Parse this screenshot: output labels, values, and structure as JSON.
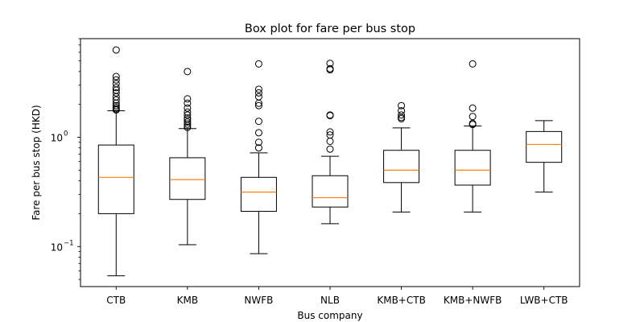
{
  "chart_data": {
    "type": "box",
    "title": "Box plot for fare per bus stop",
    "xlabel": "Bus company",
    "ylabel": "Fare per bus stop (HKD)",
    "yscale": "log",
    "ylim": [
      0.043,
      8.0
    ],
    "y_ticks": [
      {
        "value": 0.1,
        "label": "10",
        "exp": "−1"
      },
      {
        "value": 1.0,
        "label": "10",
        "exp": "0"
      }
    ],
    "categories": [
      "CTB",
      "KMB",
      "NWFB",
      "NLB",
      "KMB+CTB",
      "KMB+NWFB",
      "LWB+CTB"
    ],
    "boxes": [
      {
        "whisker_low": 0.054,
        "q1": 0.2,
        "median": 0.43,
        "q3": 0.85,
        "whisker_high": 1.75,
        "outliers": [
          6.3,
          3.6,
          3.35,
          3.1,
          2.85,
          2.7,
          2.55,
          2.35,
          2.2,
          2.05,
          1.95,
          1.88,
          1.82,
          1.78
        ]
      },
      {
        "whisker_low": 0.104,
        "q1": 0.27,
        "median": 0.41,
        "q3": 0.65,
        "whisker_high": 1.2,
        "outliers": [
          4.0,
          2.25,
          2.05,
          1.85,
          1.7,
          1.6,
          1.5,
          1.45,
          1.38,
          1.32,
          1.27,
          1.23
        ]
      },
      {
        "whisker_low": 0.086,
        "q1": 0.21,
        "median": 0.315,
        "q3": 0.43,
        "whisker_high": 0.72,
        "outliers": [
          4.7,
          2.75,
          2.55,
          2.35,
          2.05,
          1.95,
          1.4,
          1.1,
          0.9,
          0.8
        ]
      },
      {
        "whisker_low": 0.162,
        "q1": 0.23,
        "median": 0.28,
        "q3": 0.445,
        "whisker_high": 0.67,
        "outliers": [
          4.75,
          4.25,
          4.15,
          1.6,
          1.58,
          1.12,
          1.05,
          0.92,
          0.78
        ]
      },
      {
        "whisker_low": 0.207,
        "q1": 0.385,
        "median": 0.5,
        "q3": 0.76,
        "whisker_high": 1.22,
        "outliers": [
          1.95,
          1.75,
          1.6,
          1.52,
          1.48
        ]
      },
      {
        "whisker_low": 0.207,
        "q1": 0.365,
        "median": 0.5,
        "q3": 0.76,
        "whisker_high": 1.27,
        "outliers": [
          4.7,
          1.85,
          1.55,
          1.34,
          1.31
        ]
      },
      {
        "whisker_low": 0.315,
        "q1": 0.59,
        "median": 0.86,
        "q3": 1.13,
        "whisker_high": 1.42,
        "outliers": []
      }
    ],
    "colors": {
      "median": "#ff7f0e",
      "box": "#000000",
      "outlier": "#000000"
    },
    "grid": false,
    "legend": "none"
  }
}
